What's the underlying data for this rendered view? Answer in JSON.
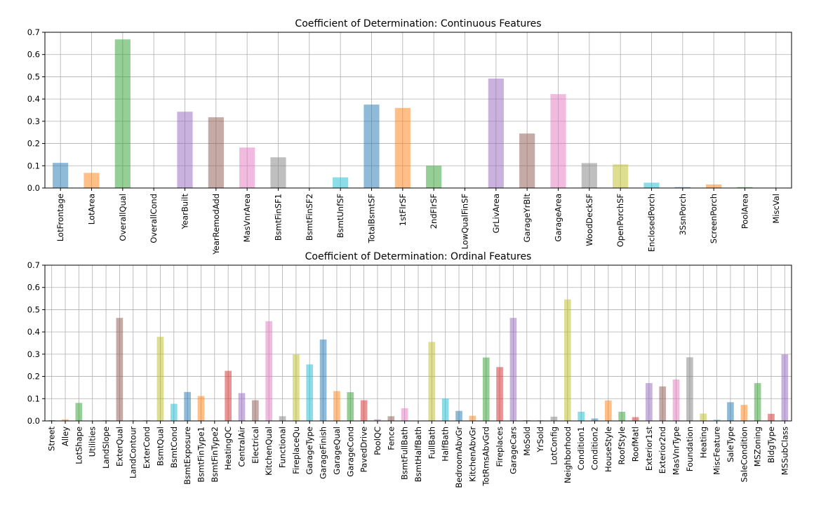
{
  "chart_data": [
    {
      "type": "bar",
      "title": "Coefficient of Determination: Continuous Features",
      "xlabel": "",
      "ylabel": "",
      "ylim": [
        0,
        0.7
      ],
      "yticks": [
        0.0,
        0.1,
        0.2,
        0.3,
        0.4,
        0.5,
        0.6,
        0.7
      ],
      "ytick_labels": [
        "0.0",
        "0.1",
        "0.2",
        "0.3",
        "0.4",
        "0.5",
        "0.6",
        "0.7"
      ],
      "grid": true,
      "categories": [
        "LotFrontage",
        "LotArea",
        "OverallQual",
        "OverallCond",
        "YearBuilt",
        "YearRemodAdd",
        "MasVnrArea",
        "BsmtFinSF1",
        "BsmtFinSF2",
        "BsmtUnfSF",
        "TotalBsmtSF",
        "1stFlrSF",
        "2ndFlrSF",
        "LowQualFinSF",
        "GrLivArea",
        "GarageYrBlt",
        "GarageArea",
        "WoodDeckSF",
        "OpenPorchSF",
        "EnclosedPorch",
        "3SsnPorch",
        "ScreenPorch",
        "PoolArea",
        "MiscVal"
      ],
      "values": [
        0.113,
        0.068,
        0.668,
        0.001,
        0.343,
        0.318,
        0.182,
        0.138,
        0.0,
        0.048,
        0.375,
        0.36,
        0.1,
        0.001,
        0.492,
        0.245,
        0.422,
        0.112,
        0.106,
        0.024,
        0.004,
        0.016,
        0.004,
        0.001
      ],
      "colors": [
        "#1f77b4",
        "#ff7f0e",
        "#2ca02c",
        "#d62728",
        "#9467bd",
        "#8c564b",
        "#e377c2",
        "#7f7f7f",
        "#bcbd22",
        "#17becf"
      ]
    },
    {
      "type": "bar",
      "title": "Coefficient of Determination: Ordinal Features",
      "xlabel": "",
      "ylabel": "",
      "ylim": [
        0,
        0.7
      ],
      "yticks": [
        0.0,
        0.1,
        0.2,
        0.3,
        0.4,
        0.5,
        0.6,
        0.7
      ],
      "ytick_labels": [
        "0.0",
        "0.1",
        "0.2",
        "0.3",
        "0.4",
        "0.5",
        "0.6",
        "0.7"
      ],
      "grid": true,
      "categories": [
        "Street",
        "Alley",
        "LotShape",
        "Utilities",
        "LandSlope",
        "ExterQual",
        "LandContour",
        "ExterCond",
        "BsmtQual",
        "BsmtCond",
        "BsmtExposure",
        "BsmtFinType1",
        "BsmtFinType2",
        "HeatingQC",
        "CentralAir",
        "Electrical",
        "KitchenQual",
        "Functional",
        "FireplaceQu",
        "GarageType",
        "GarageFinish",
        "GarageQual",
        "GarageCond",
        "PavedDrive",
        "PoolQC",
        "Fence",
        "BsmtFullBath",
        "BsmtHalfBath",
        "FullBath",
        "HalfBath",
        "BedroomAbvGr",
        "KitchenAbvGr",
        "TotRmsAbvGrd",
        "Fireplaces",
        "GarageCars",
        "MoSold",
        "YrSold",
        "LotConfig",
        "Neighborhood",
        "Condition1",
        "Condition2",
        "HouseStyle",
        "RoofStyle",
        "RoofMatl",
        "Exterior1st",
        "Exterior2nd",
        "MasVnrType",
        "Foundation",
        "Heating",
        "MiscFeature",
        "SaleType",
        "SaleCondition",
        "MSZoning",
        "BldgType",
        "MSSubClass"
      ],
      "values": [
        0.003,
        0.007,
        0.081,
        0.0,
        0.003,
        0.463,
        0.003,
        0.003,
        0.378,
        0.077,
        0.13,
        0.112,
        0.001,
        0.225,
        0.125,
        0.093,
        0.448,
        0.021,
        0.298,
        0.254,
        0.366,
        0.134,
        0.129,
        0.093,
        0.007,
        0.021,
        0.057,
        0.001,
        0.355,
        0.1,
        0.045,
        0.023,
        0.285,
        0.242,
        0.463,
        0.003,
        0.003,
        0.019,
        0.546,
        0.041,
        0.011,
        0.092,
        0.041,
        0.017,
        0.17,
        0.155,
        0.186,
        0.286,
        0.033,
        0.006,
        0.084,
        0.072,
        0.17,
        0.032,
        0.299
      ],
      "colors": [
        "#1f77b4",
        "#ff7f0e",
        "#2ca02c",
        "#d62728",
        "#9467bd",
        "#8c564b",
        "#e377c2",
        "#7f7f7f",
        "#bcbd22",
        "#17becf"
      ]
    }
  ]
}
